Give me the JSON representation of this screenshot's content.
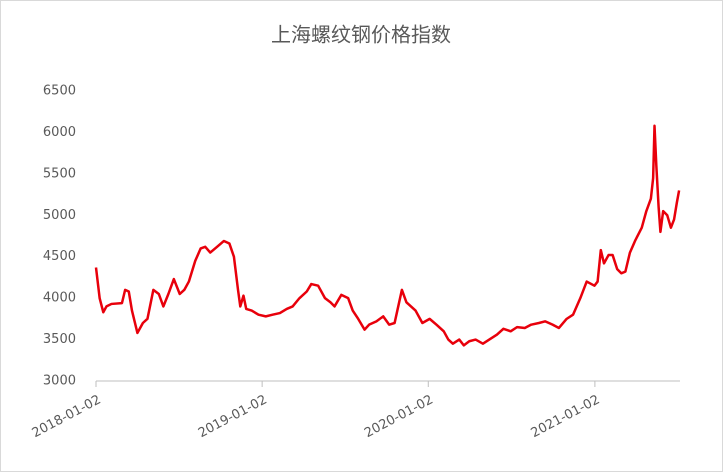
{
  "chart_data": {
    "type": "line",
    "title": "上海螺纹钢价格指数",
    "x": [
      "2018-01-02",
      "2018-01-10",
      "2018-01-18",
      "2018-01-25",
      "2018-02-05",
      "2018-02-28",
      "2018-03-07",
      "2018-03-15",
      "2018-03-22",
      "2018-04-03",
      "2018-04-15",
      "2018-04-25",
      "2018-05-08",
      "2018-05-20",
      "2018-05-30",
      "2018-06-10",
      "2018-06-22",
      "2018-07-05",
      "2018-07-15",
      "2018-07-25",
      "2018-08-08",
      "2018-08-20",
      "2018-08-30",
      "2018-09-10",
      "2018-09-25",
      "2018-10-10",
      "2018-10-22",
      "2018-11-01",
      "2018-11-10",
      "2018-11-15",
      "2018-11-22",
      "2018-11-28",
      "2018-12-10",
      "2018-12-25",
      "2019-01-10",
      "2019-01-25",
      "2019-02-10",
      "2019-02-25",
      "2019-03-10",
      "2019-03-25",
      "2019-04-10",
      "2019-04-20",
      "2019-05-05",
      "2019-05-20",
      "2019-06-01",
      "2019-06-10",
      "2019-06-25",
      "2019-07-10",
      "2019-07-20",
      "2019-08-01",
      "2019-08-15",
      "2019-08-25",
      "2019-09-10",
      "2019-09-25",
      "2019-10-08",
      "2019-10-20",
      "2019-10-28",
      "2019-11-05",
      "2019-11-15",
      "2019-11-25",
      "2019-12-05",
      "2019-12-20",
      "2020-01-05",
      "2020-01-20",
      "2020-02-05",
      "2020-02-15",
      "2020-02-25",
      "2020-03-10",
      "2020-03-20",
      "2020-04-01",
      "2020-04-15",
      "2020-05-01",
      "2020-05-15",
      "2020-06-01",
      "2020-06-15",
      "2020-07-01",
      "2020-07-15",
      "2020-08-01",
      "2020-08-15",
      "2020-09-01",
      "2020-09-15",
      "2020-10-01",
      "2020-10-15",
      "2020-11-01",
      "2020-11-15",
      "2020-12-01",
      "2020-12-15",
      "2021-01-01",
      "2021-01-08",
      "2021-01-15",
      "2021-01-22",
      "2021-02-01",
      "2021-02-10",
      "2021-02-20",
      "2021-03-01",
      "2021-03-10",
      "2021-03-20",
      "2021-04-01",
      "2021-04-15",
      "2021-04-25",
      "2021-05-05",
      "2021-05-10",
      "2021-05-13",
      "2021-05-17",
      "2021-05-22",
      "2021-05-26",
      "2021-06-01",
      "2021-06-10",
      "2021-06-18",
      "2021-06-25",
      "2021-07-01",
      "2021-07-06"
    ],
    "series": [
      {
        "color": "#e8000b",
        "values": [
          4370,
          4000,
          3830,
          3900,
          3930,
          3940,
          4100,
          4080,
          3850,
          3580,
          3700,
          3750,
          4100,
          4050,
          3900,
          4050,
          4230,
          4050,
          4100,
          4200,
          4450,
          4600,
          4620,
          4550,
          4620,
          4690,
          4660,
          4500,
          4100,
          3900,
          4030,
          3870,
          3850,
          3800,
          3780,
          3800,
          3820,
          3870,
          3900,
          4000,
          4080,
          4170,
          4150,
          4000,
          3950,
          3900,
          4040,
          4000,
          3850,
          3750,
          3620,
          3680,
          3720,
          3780,
          3680,
          3700,
          3900,
          4100,
          3950,
          3900,
          3850,
          3700,
          3750,
          3680,
          3600,
          3500,
          3450,
          3500,
          3430,
          3480,
          3500,
          3450,
          3500,
          3560,
          3630,
          3600,
          3650,
          3640,
          3680,
          3700,
          3720,
          3680,
          3640,
          3750,
          3800,
          4000,
          4200,
          4150,
          4200,
          4580,
          4420,
          4520,
          4520,
          4350,
          4300,
          4320,
          4550,
          4700,
          4850,
          5050,
          5200,
          5450,
          6080,
          5600,
          5100,
          4800,
          5050,
          5000,
          4850,
          4950,
          5150,
          5300
        ]
      }
    ],
    "xlim": [
      "2018-01-02",
      "2021-07-08"
    ],
    "xticks": [
      "2018-01-02",
      "2019-01-02",
      "2020-01-02",
      "2021-01-02"
    ],
    "ylim": [
      3000,
      6500
    ],
    "yticks": [
      3000,
      3500,
      4000,
      4500,
      5000,
      5500,
      6000,
      6500
    ]
  }
}
